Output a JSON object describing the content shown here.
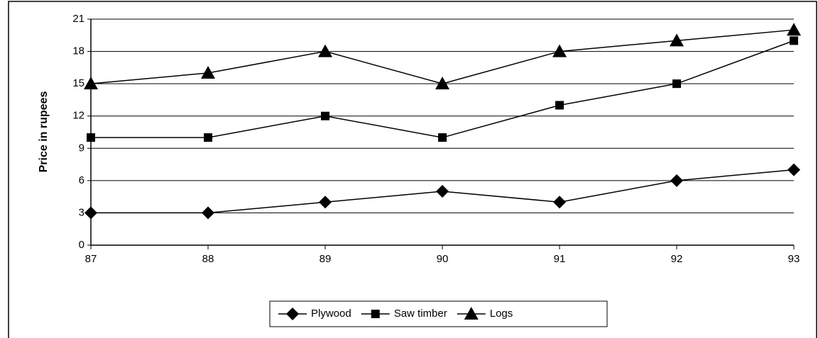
{
  "chart_data": {
    "type": "line",
    "y_label": "Price in rupees",
    "x": [
      87,
      88,
      89,
      90,
      91,
      92,
      93
    ],
    "xlim": [
      87,
      93
    ],
    "xticks": [
      87,
      88,
      89,
      90,
      91,
      92,
      93
    ],
    "ylim": [
      0,
      21
    ],
    "yticks": [
      0,
      3,
      6,
      9,
      12,
      15,
      18,
      21
    ],
    "grid": true,
    "legend": "bottom",
    "series": [
      {
        "name": "Plywood",
        "color": "#000000",
        "marker": "diamond",
        "values": [
          3,
          3,
          4,
          5,
          4,
          6,
          7
        ]
      },
      {
        "name": "Saw timber",
        "color": "#000000",
        "marker": "square",
        "values": [
          10,
          10,
          12,
          10,
          13,
          15,
          19
        ]
      },
      {
        "name": "Logs",
        "color": "#000000",
        "marker": "triangle",
        "values": [
          15,
          16,
          18,
          15,
          18,
          19,
          20
        ]
      }
    ]
  }
}
